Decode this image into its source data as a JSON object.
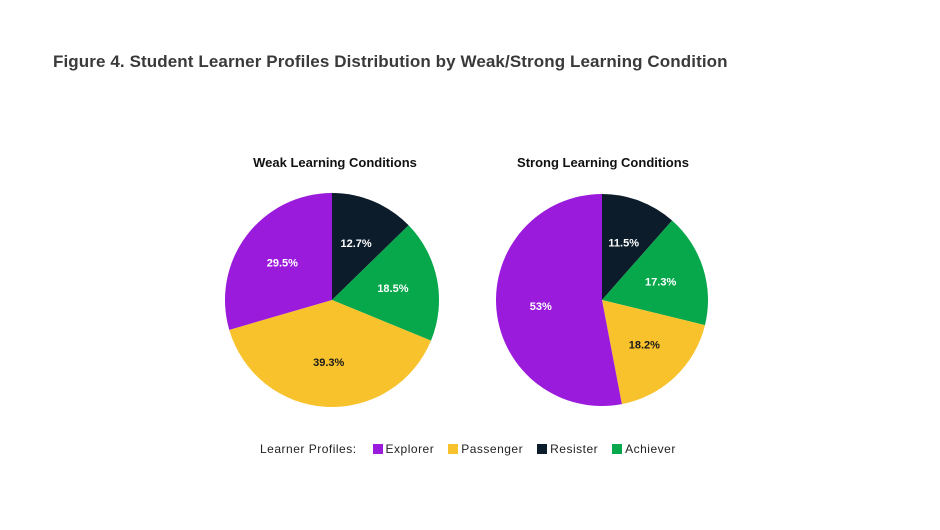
{
  "figure_title": "Figure 4. Student Learner Profiles Distribution by Weak/Strong Learning Condition",
  "legend": {
    "label": "Learner Profiles:",
    "items": [
      {
        "name": "Explorer",
        "color": "#9b1bdc"
      },
      {
        "name": "Passenger",
        "color": "#f8c22c"
      },
      {
        "name": "Resister",
        "color": "#0c1c2a"
      },
      {
        "name": "Achiever",
        "color": "#07a84b"
      }
    ]
  },
  "chart_data": [
    {
      "type": "pie",
      "title": "Weak Learning Conditions",
      "categories": [
        "Resister",
        "Achiever",
        "Passenger",
        "Explorer"
      ],
      "values": [
        12.7,
        18.5,
        39.3,
        29.5
      ],
      "labels": [
        "12.7%",
        "18.5%",
        "39.3%",
        "29.5%"
      ],
      "colors": [
        "#0c1c2a",
        "#07a84b",
        "#f8c22c",
        "#9b1bdc"
      ],
      "start_angle": "12 o'clock, clockwise"
    },
    {
      "type": "pie",
      "title": "Strong Learning Conditions",
      "categories": [
        "Resister",
        "Achiever",
        "Passenger",
        "Explorer"
      ],
      "values": [
        11.5,
        17.3,
        18.2,
        53
      ],
      "labels": [
        "11.5%",
        "17.3%",
        "18.2%",
        "53%"
      ],
      "colors": [
        "#0c1c2a",
        "#07a84b",
        "#f8c22c",
        "#9b1bdc"
      ],
      "start_angle": "12 o'clock, clockwise"
    }
  ]
}
